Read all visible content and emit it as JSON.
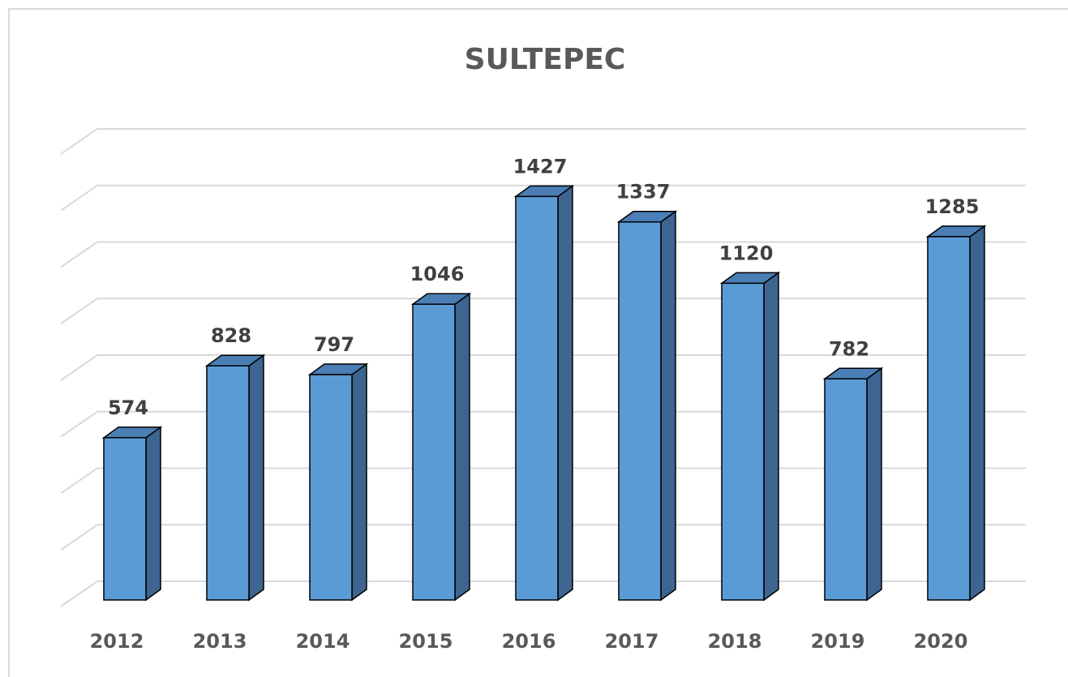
{
  "chart_data": {
    "type": "bar",
    "title": "SULTEPEC",
    "categories": [
      "2012",
      "2013",
      "2014",
      "2015",
      "2016",
      "2017",
      "2018",
      "2019",
      "2020"
    ],
    "values": [
      574,
      828,
      797,
      1046,
      1427,
      1337,
      1120,
      782,
      1285
    ],
    "color": "#5b9bd5",
    "ylim": [
      0,
      1600
    ],
    "yticks": [
      0,
      200,
      400,
      600,
      800,
      1000,
      1200,
      1400,
      1600
    ],
    "grid": true
  }
}
